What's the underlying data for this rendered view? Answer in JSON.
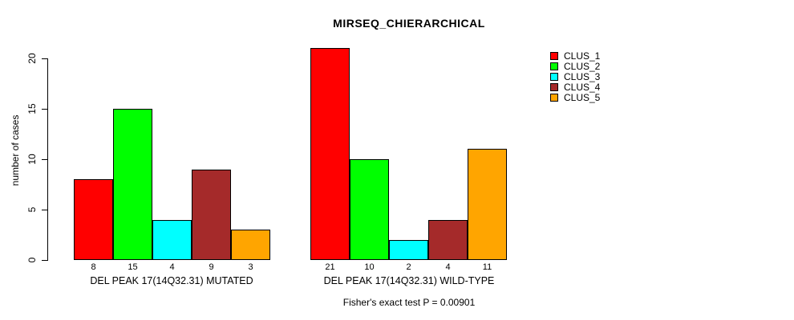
{
  "chart_data": {
    "type": "bar",
    "title": "MIRSEQ_CHIERARCHICAL",
    "subtitle": "Fisher's exact test P = 0.00901",
    "ylabel": "number of cases",
    "ylim": [
      0,
      20
    ],
    "yticks": [
      "0",
      "5",
      "10",
      "15",
      "20"
    ],
    "grid": false,
    "legend_position": "top-right",
    "bar_outline_color": "#000000",
    "series": [
      {
        "name": "CLUS_1",
        "color": "#ff0000"
      },
      {
        "name": "CLUS_2",
        "color": "#00ff00"
      },
      {
        "name": "CLUS_3",
        "color": "#00ffff"
      },
      {
        "name": "CLUS_4",
        "color": "#a52a2a"
      },
      {
        "name": "CLUS_5",
        "color": "#ffa500"
      }
    ],
    "groups": [
      {
        "label": "DEL PEAK 17(14Q32.31) MUTATED",
        "values": [
          8,
          15,
          4,
          9,
          3
        ],
        "value_labels": [
          "8",
          "15",
          "4",
          "9",
          "3"
        ]
      },
      {
        "label": "DEL PEAK 17(14Q32.31) WILD-TYPE",
        "values": [
          21,
          10,
          2,
          4,
          11
        ],
        "value_labels": [
          "21",
          "10",
          "2",
          "4",
          "11"
        ]
      }
    ]
  }
}
